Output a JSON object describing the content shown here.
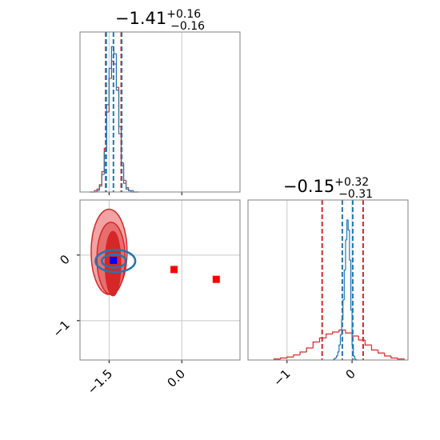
{
  "chart_data": [
    {
      "type": "histogram",
      "title": {
        "value": "−1.41",
        "plus": "+0.16",
        "minus": "−0.16"
      },
      "xlim": [
        -2.1,
        1.2
      ],
      "ylim": [
        0,
        110
      ],
      "xticks": [
        {
          "value": -1.5,
          "label": "−1.5"
        },
        {
          "value": 0,
          "label": "0.0"
        }
      ],
      "show_tick_labels": false,
      "grid": true,
      "series": [
        {
          "color": "#d62728",
          "bins": [
            -1.9,
            -1.85,
            -1.8,
            -1.75,
            -1.7,
            -1.65,
            -1.6,
            -1.55,
            -1.5,
            -1.45,
            -1.4,
            -1.35,
            -1.3,
            -1.25,
            -1.2,
            -1.15,
            -1.1,
            -1.05,
            -1,
            -0.95,
            -0.9
          ],
          "values": [
            0,
            0,
            1,
            2,
            5,
            14,
            30,
            55,
            78,
            90,
            88,
            72,
            45,
            20,
            8,
            3,
            1,
            0,
            0,
            0
          ]
        },
        {
          "color": "#1f77b4",
          "bins": [
            -1.9,
            -1.85,
            -1.8,
            -1.75,
            -1.7,
            -1.65,
            -1.6,
            -1.55,
            -1.5,
            -1.45,
            -1.4,
            -1.35,
            -1.3,
            -1.25,
            -1.2,
            -1.15,
            -1.1,
            -1.05,
            -1,
            -0.95,
            -0.9
          ],
          "values": [
            0,
            0,
            0,
            1,
            4,
            12,
            28,
            60,
            85,
            100,
            95,
            70,
            40,
            18,
            6,
            2,
            1,
            1,
            0,
            0
          ]
        }
      ],
      "lines": [
        {
          "color": "#d62728",
          "values": [
            -1.57,
            -1.25
          ]
        },
        {
          "color": "#1f77b4",
          "values": [
            -1.56,
            -1.41,
            -1.24
          ]
        }
      ]
    },
    {
      "type": "contour",
      "xlim": [
        -2.1,
        1.2
      ],
      "ylim": [
        -1.6,
        0.84
      ],
      "xticks": [
        {
          "value": -1.5,
          "label": "−1.5"
        },
        {
          "value": 0,
          "label": "0.0"
        }
      ],
      "yticks": [
        {
          "value": -1,
          "label": "−1"
        },
        0
      ],
      "grid": true,
      "contours": [
        {
          "color": "#d62728",
          "fill": "#f3a3a3",
          "center": [
            -1.5,
            0.05
          ],
          "radii": [
            0.37,
            0.65
          ]
        },
        {
          "color": "#d62728",
          "fill": "#e76e6e",
          "center": [
            -1.46,
            -0.05
          ],
          "radii": [
            0.29,
            0.55
          ]
        },
        {
          "color": "#d62728",
          "fill": "#d62728",
          "center": [
            -1.42,
            -0.13
          ],
          "radii": [
            0.16,
            0.49
          ]
        },
        {
          "color": "#1f77b4",
          "fill": "none",
          "center": [
            -1.37,
            -0.09
          ],
          "radii": [
            0.41,
            0.17
          ]
        },
        {
          "color": "#1f77b4",
          "fill": "none",
          "center": [
            -1.4,
            -0.09
          ],
          "radii": [
            0.25,
            0.1
          ]
        }
      ],
      "points": [
        {
          "color": "#0000ff",
          "x": -1.41,
          "y": -0.08
        },
        {
          "color": "#ff0000",
          "x": -0.16,
          "y": -0.22
        },
        {
          "color": "#ff0000",
          "x": 0.71,
          "y": -0.37
        }
      ]
    },
    {
      "type": "histogram",
      "title": {
        "value": "−0.15",
        "plus": "+0.32",
        "minus": "−0.31"
      },
      "xlim": [
        -1.6,
        0.86
      ],
      "ylim": [
        0,
        160
      ],
      "xticks": [
        {
          "value": -1,
          "label": "−1"
        },
        0
      ],
      "show_tick_labels": true,
      "grid": true,
      "series": [
        {
          "color": "#d62728",
          "bins": [
            -1.2,
            -1.1,
            -1,
            -0.9,
            -0.8,
            -0.7,
            -0.6,
            -0.5,
            -0.4,
            -0.3,
            -0.2,
            -0.1,
            0,
            0.1,
            0.2,
            0.3,
            0.4,
            0.5,
            0.6,
            0.7,
            0.8
          ],
          "values": [
            1,
            2,
            3,
            5,
            8,
            12,
            18,
            22,
            26,
            28,
            30,
            27,
            24,
            20,
            15,
            10,
            7,
            4,
            2,
            1
          ]
        },
        {
          "color": "#1f77b4",
          "bins": [
            -0.3,
            -0.28,
            -0.26,
            -0.24,
            -0.22,
            -0.2,
            -0.18,
            -0.16,
            -0.14,
            -0.12,
            -0.1,
            -0.08,
            -0.06,
            -0.04,
            -0.02,
            0,
            0.02,
            0.04,
            0.06,
            0.08,
            0.1
          ],
          "values": [
            0,
            1,
            2,
            4,
            8,
            15,
            25,
            40,
            60,
            90,
            120,
            140,
            130,
            100,
            50,
            15,
            4,
            1,
            0,
            0
          ]
        }
      ],
      "lines": [
        {
          "color": "#d62728",
          "values": [
            -0.46,
            0.17
          ]
        },
        {
          "color": "#1f77b4",
          "values": [
            -0.15,
            0.01
          ]
        }
      ]
    }
  ]
}
